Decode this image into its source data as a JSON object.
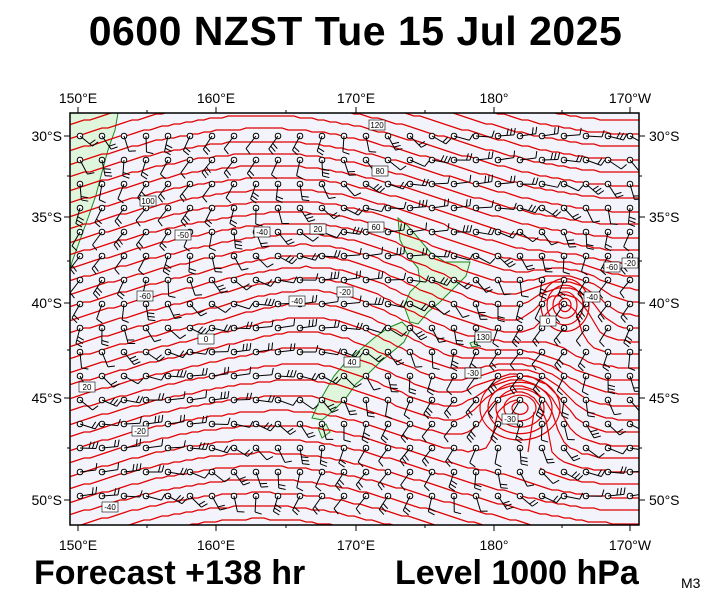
{
  "header": {
    "title": "0600 NZST Tue 15 Jul 2025"
  },
  "footer": {
    "forecast": "Forecast +138 hr",
    "level": "Level 1000 hPa",
    "model": "M3"
  },
  "axes": {
    "lon_labels": [
      "150°E",
      "160°E",
      "170°E",
      "180°",
      "170°W"
    ],
    "lat_labels": [
      "30°S",
      "35°S",
      "40°S",
      "45°S",
      "50°S"
    ]
  },
  "colors": {
    "ocean": "#f3f3fc",
    "land": "#dff5dc",
    "contour": "#e00000",
    "coast": "#1a8a1a",
    "barb": "#000000"
  },
  "contour_labels": [
    "-50",
    "-60",
    "0",
    "-40",
    "-40",
    "-20",
    "20",
    "40",
    "60",
    "80",
    "100",
    "120",
    "130",
    "-20",
    "-40",
    "-30",
    "-30",
    "0",
    "-40",
    "-60",
    "-20",
    "20"
  ]
}
